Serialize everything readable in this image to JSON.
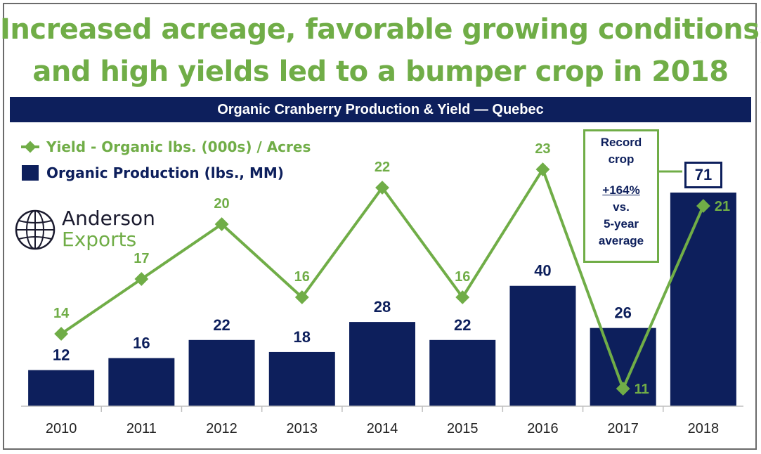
{
  "headline": {
    "line1": "Increased acreage, favorable growing conditions,",
    "line2": "and high yields led to a bumper crop in 2018"
  },
  "banner": "Organic Cranberry Production & Yield — Quebec",
  "colors": {
    "bar": "#0d1f5c",
    "line": "#70ad47",
    "label_green": "#70ad47",
    "label_navy": "#0d1f5c"
  },
  "logo": {
    "line1": "Anderson",
    "line2": "Exports"
  },
  "callout": {
    "line1": "Record",
    "line2": "crop",
    "line3": "+164%",
    "line4": "vs.",
    "line5": "5-year",
    "line6": "average"
  },
  "chart_data": {
    "type": "bar+line",
    "title": "Organic Cranberry Production & Yield — Quebec",
    "categories": [
      "2010",
      "2011",
      "2012",
      "2013",
      "2014",
      "2015",
      "2016",
      "2017",
      "2018"
    ],
    "series": [
      {
        "name": "Organic Production (lbs., MM)",
        "type": "bar",
        "values": [
          12,
          16,
          22,
          18,
          28,
          22,
          40,
          26,
          71
        ]
      },
      {
        "name": "Yield - Organic lbs. (000s) / Acres",
        "type": "line",
        "values": [
          14,
          17,
          20,
          16,
          22,
          16,
          23,
          11,
          21
        ]
      }
    ],
    "legend": [
      "Yield - Organic lbs. (000s) / Acres",
      "Organic Production (lbs., MM)"
    ],
    "highlight": {
      "category": "2018",
      "value": "71"
    }
  }
}
